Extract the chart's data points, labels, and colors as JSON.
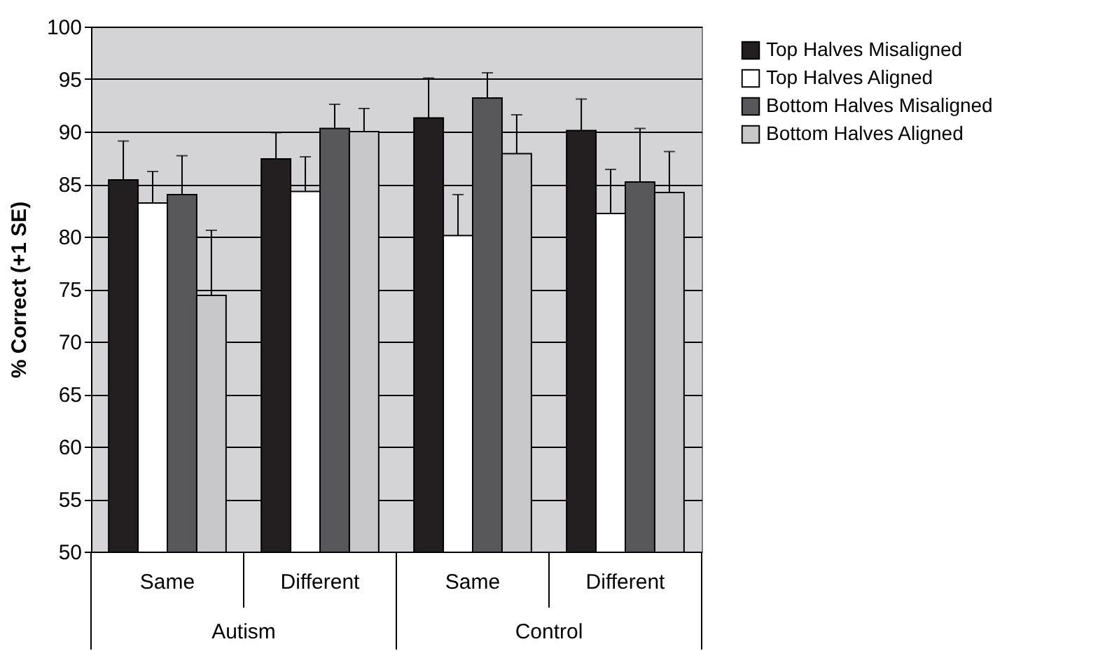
{
  "chart_data": {
    "type": "bar",
    "ylabel": "% Correct (+1 SE)",
    "categories": [
      "Same",
      "Different",
      "Same",
      "Different"
    ],
    "annotations": [
      "Autism",
      "Control"
    ],
    "series": [
      {
        "name": "Top Halves Misaligned",
        "color": "#231f20",
        "values": [
          85.4,
          87.4,
          91.3,
          90.1
        ],
        "errors": [
          [
            85.4,
            89.1
          ],
          [
            87.4,
            89.9
          ],
          [
            91.3,
            95.1
          ],
          [
            90.1,
            93.1
          ]
        ]
      },
      {
        "name": "Top Halves Aligned",
        "color": "#ffffff",
        "values": [
          83.2,
          84.3,
          80.1,
          82.2
        ],
        "errors": [
          [
            83.2,
            86.2
          ],
          [
            84.3,
            87.6
          ],
          [
            80.1,
            84.0
          ],
          [
            82.2,
            86.4
          ]
        ]
      },
      {
        "name": "Bottom Halves Misaligned",
        "color": "#58585a",
        "values": [
          84.0,
          90.3,
          93.2,
          85.2
        ],
        "errors": [
          [
            84.0,
            87.7
          ],
          [
            90.3,
            92.6
          ],
          [
            93.2,
            95.6
          ],
          [
            85.2,
            90.3
          ]
        ]
      },
      {
        "name": "Bottom Halves Aligned",
        "color": "#c8c8ca",
        "values": [
          74.4,
          90.0,
          87.9,
          84.2
        ],
        "errors": [
          [
            74.4,
            80.6
          ],
          [
            90.0,
            92.2
          ],
          [
            87.9,
            91.6
          ],
          [
            84.2,
            88.1
          ]
        ]
      }
    ],
    "ylim": [
      50,
      100
    ],
    "yticks": [
      50,
      55,
      60,
      65,
      70,
      75,
      80,
      85,
      90,
      95,
      100
    ],
    "grid": "y",
    "legend": "right"
  }
}
